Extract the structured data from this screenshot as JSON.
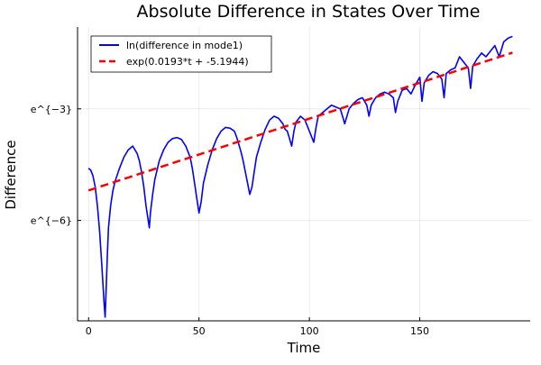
{
  "chart_data": {
    "type": "line",
    "title": "Absolute Difference in States Over Time",
    "xlabel": "Time",
    "ylabel": "Difference",
    "xlim": [
      -5,
      200
    ],
    "ylim": [
      -8.7,
      -0.8
    ],
    "yscale": "log-e (ticks show exponents)",
    "xticks": [
      0,
      50,
      100,
      150
    ],
    "xtick_labels": [
      "0",
      "50",
      "100",
      "150"
    ],
    "yticks": [
      -3,
      -6
    ],
    "ytick_labels": [
      "e^{−3}",
      "e^{−6}"
    ],
    "grid": true,
    "legend_position": "top-left",
    "series": [
      {
        "name": "ln(difference in mode1)",
        "color": "#0000ff",
        "style": "solid",
        "x": [
          0,
          1,
          2,
          3,
          4,
          5,
          6,
          7,
          7.5,
          8,
          8.5,
          9,
          10,
          11,
          12,
          14,
          16,
          18,
          20,
          22,
          23,
          24,
          25,
          26,
          27,
          27.5,
          28,
          29,
          30,
          32,
          34,
          36,
          38,
          40,
          42,
          44,
          46,
          47,
          48,
          49,
          50,
          51,
          52,
          54,
          56,
          58,
          60,
          62,
          64,
          66,
          67,
          68,
          69,
          70,
          71,
          72,
          73,
          74,
          75,
          76,
          78,
          80,
          82,
          84,
          86,
          88,
          89,
          90,
          91,
          92,
          93,
          94,
          96,
          98,
          100,
          102,
          103,
          104,
          106,
          108,
          110,
          112,
          114,
          115,
          116,
          118,
          120,
          122,
          124,
          126,
          127,
          128,
          130,
          132,
          134,
          136,
          138,
          139,
          140,
          142,
          144,
          146,
          148,
          150,
          151,
          152,
          154,
          156,
          158,
          160,
          161,
          162,
          164,
          166,
          168,
          170,
          172,
          173,
          174,
          176,
          178,
          180,
          182,
          184,
          186,
          188,
          190,
          192
        ],
        "y": [
          -4.6,
          -4.65,
          -4.8,
          -5.1,
          -5.6,
          -6.3,
          -7.2,
          -8.2,
          -8.6,
          -7.8,
          -6.9,
          -6.2,
          -5.6,
          -5.2,
          -4.95,
          -4.6,
          -4.3,
          -4.1,
          -4.0,
          -4.2,
          -4.4,
          -4.7,
          -5.1,
          -5.6,
          -6.0,
          -6.2,
          -5.8,
          -5.3,
          -4.9,
          -4.4,
          -4.1,
          -3.9,
          -3.8,
          -3.77,
          -3.82,
          -4.0,
          -4.3,
          -4.6,
          -5.0,
          -5.4,
          -5.8,
          -5.5,
          -5.0,
          -4.5,
          -4.1,
          -3.8,
          -3.6,
          -3.5,
          -3.52,
          -3.6,
          -3.75,
          -3.95,
          -4.15,
          -4.4,
          -4.7,
          -5.0,
          -5.3,
          -5.1,
          -4.7,
          -4.3,
          -3.9,
          -3.55,
          -3.3,
          -3.2,
          -3.25,
          -3.4,
          -3.55,
          -3.6,
          -3.8,
          -4.0,
          -3.6,
          -3.35,
          -3.2,
          -3.3,
          -3.6,
          -3.9,
          -3.5,
          -3.2,
          -3.1,
          -3.0,
          -2.9,
          -2.95,
          -3.0,
          -3.2,
          -3.4,
          -3.0,
          -2.85,
          -2.75,
          -2.7,
          -2.9,
          -3.2,
          -2.9,
          -2.7,
          -2.6,
          -2.55,
          -2.6,
          -2.7,
          -3.1,
          -2.8,
          -2.5,
          -2.45,
          -2.6,
          -2.35,
          -2.15,
          -2.8,
          -2.3,
          -2.1,
          -2.0,
          -2.05,
          -2.2,
          -2.7,
          -2.05,
          -1.95,
          -1.9,
          -1.6,
          -1.75,
          -1.9,
          -2.45,
          -1.85,
          -1.65,
          -1.5,
          -1.6,
          -1.45,
          -1.3,
          -1.6,
          -1.2,
          -1.1,
          -1.05
        ]
      },
      {
        "name": "exp(0.0193*t + -5.1944)",
        "color": "#ff0000",
        "style": "dashed",
        "slope": 0.0193,
        "intercept": -5.1944,
        "x": [
          0,
          192
        ],
        "y": [
          -5.1944,
          -1.4888
        ]
      }
    ]
  }
}
